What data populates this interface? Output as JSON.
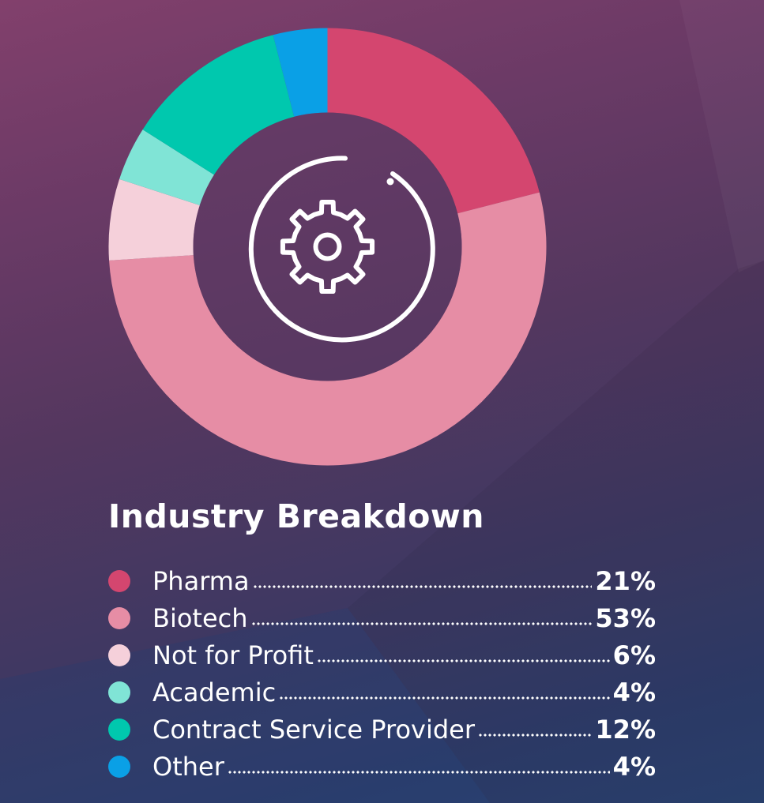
{
  "chart_data": {
    "type": "pie",
    "title": "Industry Breakdown",
    "categories": [
      "Pharma",
      "Biotech",
      "Not for Profit",
      "Academic",
      "Contract Service Provider",
      "Other"
    ],
    "values": [
      21,
      53,
      6,
      4,
      12,
      4
    ],
    "value_labels": [
      "21%",
      "53%",
      "6%",
      "4%",
      "12%",
      "4%"
    ],
    "colors": [
      "#d4466f",
      "#e68da5",
      "#f5d0da",
      "#80e4d6",
      "#00c8ae",
      "#0aa0e6"
    ],
    "donut": true,
    "center_icon": "gear-icon",
    "legend_position": "bottom"
  }
}
